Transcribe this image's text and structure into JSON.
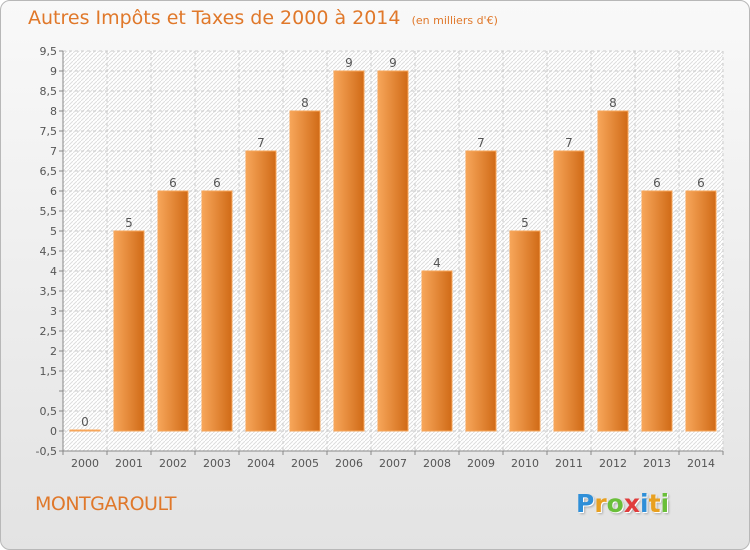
{
  "header": {
    "title": "Autres Impôts et Taxes de 2000 à 2014",
    "unit_note": "(en milliers d'€)"
  },
  "footer": {
    "commune": "MONTGAROULT",
    "brand_letters": [
      "P",
      "r",
      "o",
      "x",
      "i",
      "t",
      "i"
    ],
    "brand_colors": [
      "#2f8fd8",
      "#e8a020",
      "#6abf3a",
      "#e03c3c",
      "#2f8fd8",
      "#e8a020",
      "#6abf3a"
    ]
  },
  "chart_data": {
    "type": "bar",
    "categories": [
      "2000",
      "2001",
      "2002",
      "2003",
      "2004",
      "2005",
      "2006",
      "2007",
      "2008",
      "2009",
      "2010",
      "2011",
      "2012",
      "2013",
      "2014"
    ],
    "values": [
      0,
      5,
      6,
      6,
      7,
      8,
      9,
      9,
      4,
      7,
      5,
      7,
      8,
      6,
      6
    ],
    "value_labels": [
      "0",
      "5",
      "6",
      "6",
      "7",
      "8",
      "9",
      "9",
      "4",
      "7",
      "5",
      "7",
      "8",
      "6",
      "6"
    ],
    "yticks": [
      -0.5,
      0,
      0.5,
      1,
      1.5,
      2,
      2.5,
      3,
      3.5,
      4,
      4.5,
      5,
      5.5,
      6,
      6.5,
      7,
      7.5,
      8,
      8.5,
      9,
      9.5
    ],
    "ytick_labels": [
      "-0,5",
      "0",
      "0,5",
      "",
      "1,5",
      "2",
      "2,5",
      "3",
      "3,5",
      "4",
      "4,5",
      "5",
      "5,5",
      "6",
      "6,5",
      "7",
      "7,5",
      "8",
      "8,5",
      "9",
      "9,5"
    ],
    "ylim": [
      -0.5,
      9.5
    ],
    "xlabel": "",
    "ylabel": "",
    "grid": true,
    "bar_color": "#e8862e",
    "bar_color_light": "#f7a65a",
    "bar_color_dark": "#d06a16",
    "label_color": "#555555"
  }
}
